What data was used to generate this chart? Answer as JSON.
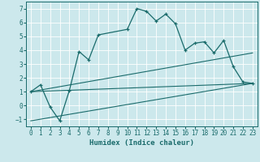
{
  "xlabel": "Humidex (Indice chaleur)",
  "bg_color": "#cce8ec",
  "grid_color": "#ffffff",
  "line_color": "#1a6b6b",
  "xlim": [
    -0.5,
    23.5
  ],
  "ylim": [
    -1.5,
    7.5
  ],
  "xticks": [
    0,
    1,
    2,
    3,
    4,
    5,
    6,
    7,
    8,
    9,
    10,
    11,
    12,
    13,
    14,
    15,
    16,
    17,
    18,
    19,
    20,
    21,
    22,
    23
  ],
  "yticks": [
    -1,
    0,
    1,
    2,
    3,
    4,
    5,
    6,
    7
  ],
  "line1_x": [
    0,
    1,
    2,
    3,
    4,
    5,
    6,
    7,
    10,
    11,
    12,
    13,
    14,
    15,
    16,
    17,
    18,
    19,
    20,
    21,
    22,
    23
  ],
  "line1_y": [
    1.0,
    1.5,
    -0.1,
    -1.1,
    1.1,
    3.9,
    3.3,
    5.1,
    5.5,
    7.0,
    6.8,
    6.1,
    6.6,
    5.9,
    4.0,
    4.5,
    4.6,
    3.8,
    4.7,
    2.8,
    1.7,
    1.6
  ],
  "line2_x": [
    0,
    23
  ],
  "line2_y": [
    1.0,
    3.8
  ],
  "line3_x": [
    0,
    23
  ],
  "line3_y": [
    1.0,
    1.6
  ],
  "line4_x": [
    0,
    23
  ],
  "line4_y": [
    -1.1,
    1.6
  ],
  "xlabel_fontsize": 6.5,
  "tick_fontsize": 5.5
}
